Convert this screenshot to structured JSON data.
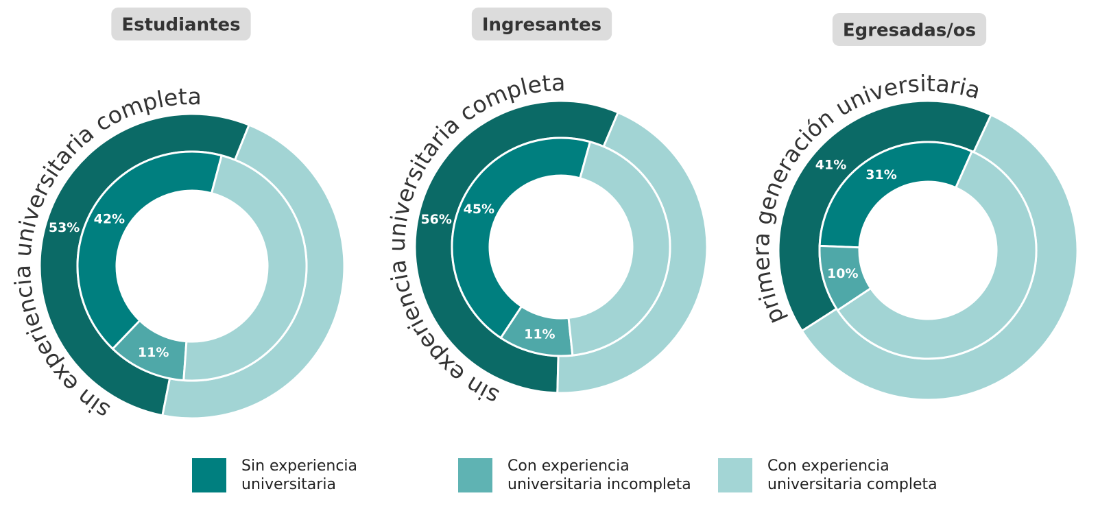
{
  "chart_data": [
    {
      "type": "donut",
      "title": "Estudiantes",
      "arc_label": "sin experiencia universitaria completa",
      "rings": [
        {
          "values": [
            53,
            47
          ],
          "value_labels": [
            "53%",
            null
          ],
          "colors": [
            "#0b6a66",
            "#a2d4d4"
          ]
        },
        {
          "values": [
            42,
            11,
            47
          ],
          "value_labels": [
            "42%",
            "11%",
            null
          ],
          "colors": [
            "#007f7f",
            "#4fa8a8",
            "#a2d4d4"
          ]
        }
      ]
    },
    {
      "type": "donut",
      "title": "Ingresantes",
      "arc_label": "sin experiencia universitaria completa",
      "rings": [
        {
          "values": [
            56,
            44
          ],
          "value_labels": [
            "56%",
            null
          ],
          "colors": [
            "#0b6a66",
            "#a2d4d4"
          ]
        },
        {
          "values": [
            45,
            11,
            44
          ],
          "value_labels": [
            "45%",
            "11%",
            null
          ],
          "colors": [
            "#007f7f",
            "#4fa8a8",
            "#a2d4d4"
          ]
        }
      ]
    },
    {
      "type": "donut",
      "title": "Egresadas/os",
      "arc_label": "primera generación universitaria",
      "rings": [
        {
          "values": [
            41,
            59
          ],
          "value_labels": [
            "41%",
            null
          ],
          "colors": [
            "#0b6a66",
            "#a2d4d4"
          ]
        },
        {
          "values": [
            31,
            10,
            59
          ],
          "value_labels": [
            "31%",
            "10%",
            null
          ],
          "colors": [
            "#007f7f",
            "#4fa8a8",
            "#a2d4d4"
          ]
        }
      ]
    }
  ],
  "legend": [
    {
      "label": "Sin experiencia\nuniversitaria",
      "color": "#007f7f"
    },
    {
      "label": "Con experiencia\nuniversitaria incompleta",
      "color": "#5fb3b3"
    },
    {
      "label": "Con experiencia\nuniversitaria completa",
      "color": "#a3d5d5"
    }
  ]
}
